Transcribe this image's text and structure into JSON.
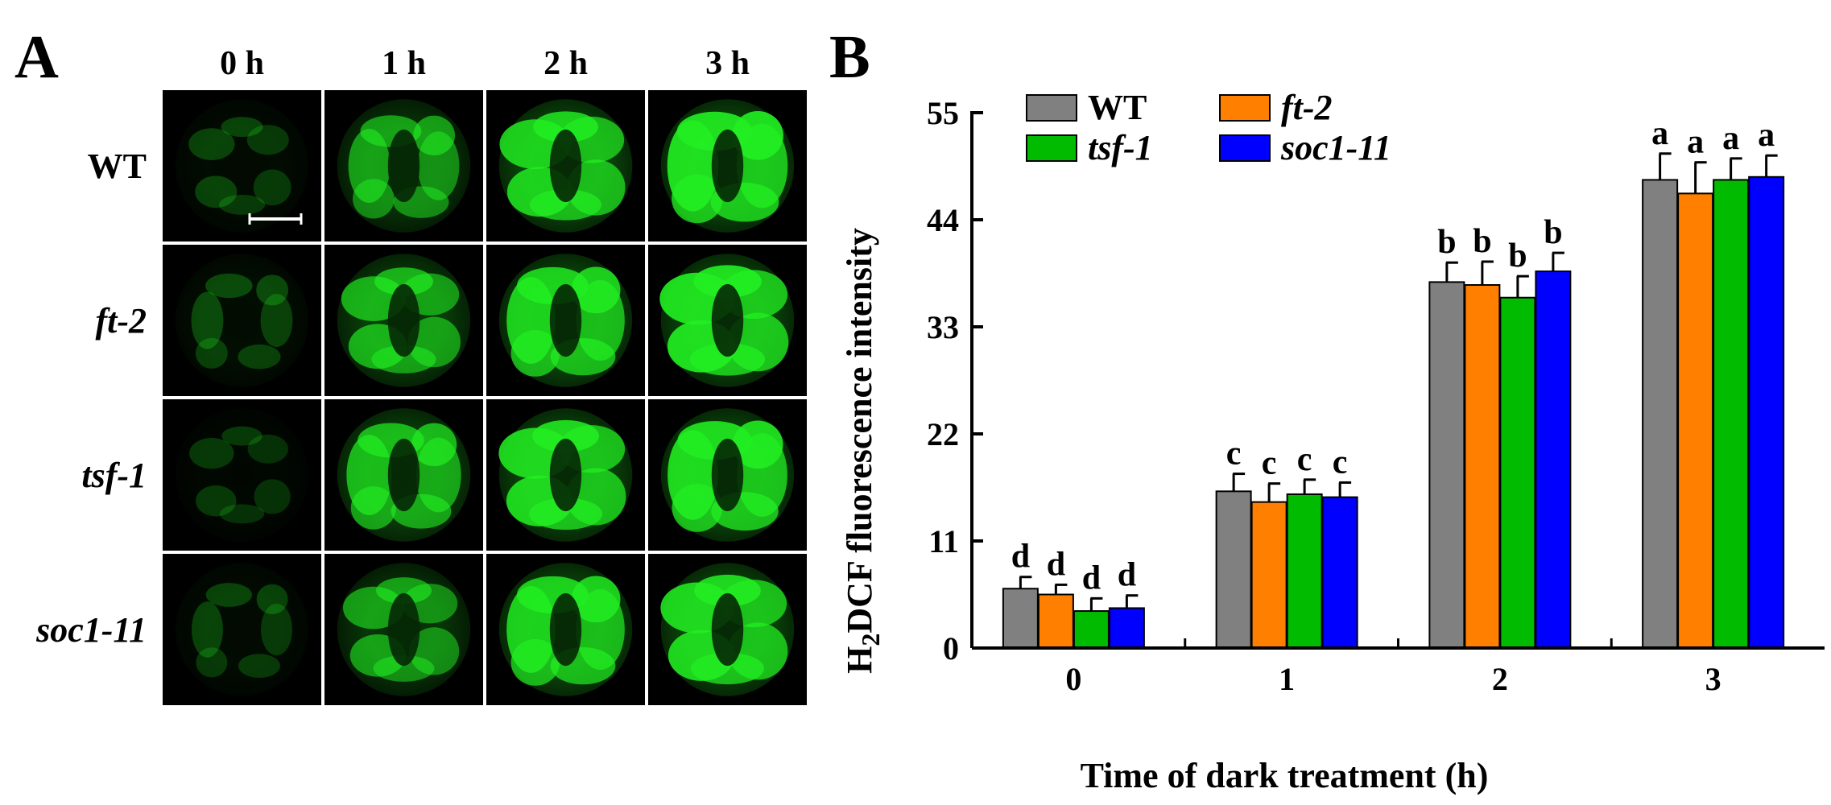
{
  "panels": {
    "a": {
      "letter": "A",
      "columns": [
        "0 h",
        "1 h",
        "2 h",
        "3 h"
      ],
      "rows": [
        {
          "label": "WT",
          "italic": false
        },
        {
          "label": "ft-2",
          "italic": true
        },
        {
          "label": "tsf-1",
          "italic": true
        },
        {
          "label": "soc1-11",
          "italic": true
        }
      ],
      "cell_intensity": [
        [
          0.12,
          0.55,
          0.85,
          0.95
        ],
        [
          0.15,
          0.65,
          0.85,
          0.95
        ],
        [
          0.08,
          0.7,
          0.9,
          0.92
        ],
        [
          0.12,
          0.55,
          0.85,
          0.9
        ]
      ],
      "fluorescence_color": "#22ee22",
      "scale_bar": true
    },
    "b": {
      "letter": "B"
    }
  },
  "chart_data": {
    "type": "bar",
    "categories": [
      "0",
      "1",
      "2",
      "3"
    ],
    "xlabel": "Time of dark treatment (h)",
    "ylabel": {
      "prefix": "H",
      "subscript": "2",
      "rest": "DCF fluorescence intensity"
    },
    "ylim": [
      0,
      55
    ],
    "yticks": [
      "0",
      "11",
      "22",
      "33",
      "44",
      "55"
    ],
    "legend_position": "top-left",
    "series": [
      {
        "name": "WT",
        "italic": false,
        "color": "#808080",
        "values": [
          6.1,
          16.1,
          37.6,
          48.1
        ],
        "errors": [
          1.2,
          1.8,
          2.0,
          2.7
        ],
        "letters": [
          "d",
          "c",
          "b",
          "a"
        ]
      },
      {
        "name": "ft-2",
        "italic": true,
        "color": "#ff7f00",
        "values": [
          5.5,
          15.0,
          37.3,
          46.7
        ],
        "errors": [
          1.0,
          1.9,
          2.4,
          3.2
        ],
        "letters": [
          "d",
          "c",
          "b",
          "a"
        ]
      },
      {
        "name": "tsf-1",
        "italic": true,
        "color": "#00bb00",
        "values": [
          3.8,
          15.8,
          36.0,
          48.1
        ],
        "errors": [
          1.3,
          1.5,
          2.2,
          2.2
        ],
        "letters": [
          "d",
          "c",
          "b",
          "a"
        ]
      },
      {
        "name": "soc1-11",
        "italic": true,
        "color": "#0000ff",
        "values": [
          4.1,
          15.5,
          38.7,
          48.4
        ],
        "errors": [
          1.3,
          1.5,
          1.9,
          2.2
        ],
        "letters": [
          "d",
          "c",
          "b",
          "a"
        ]
      }
    ]
  }
}
